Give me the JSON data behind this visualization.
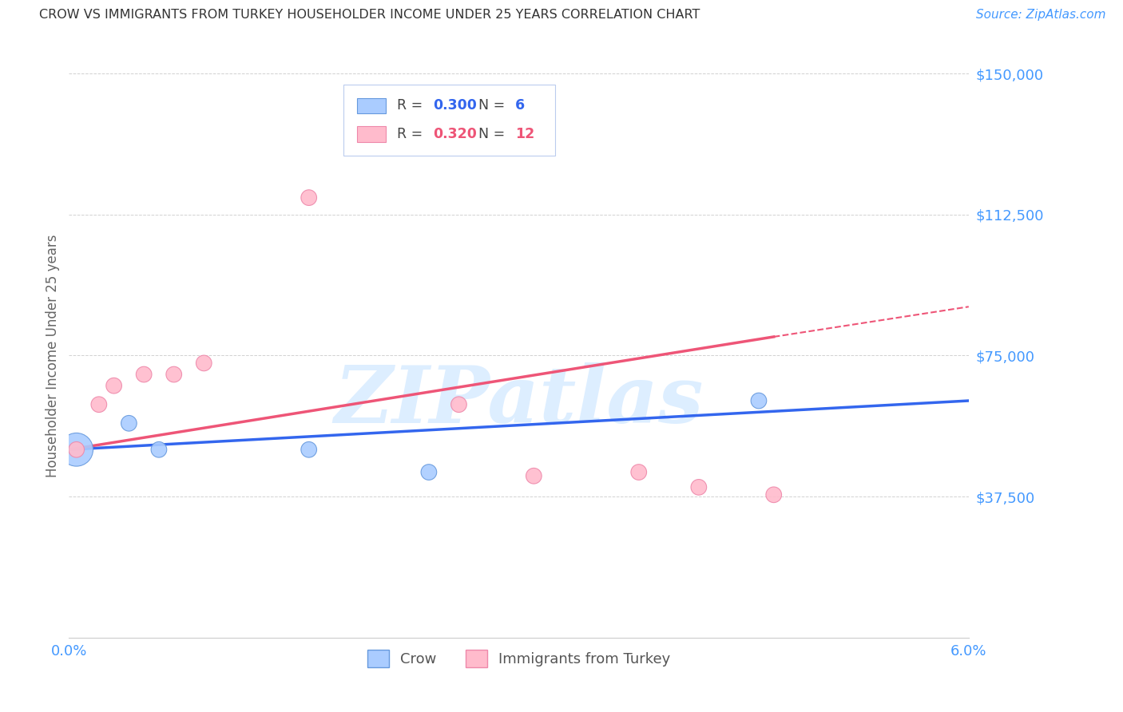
{
  "title": "CROW VS IMMIGRANTS FROM TURKEY HOUSEHOLDER INCOME UNDER 25 YEARS CORRELATION CHART",
  "source": "Source: ZipAtlas.com",
  "ylabel": "Householder Income Under 25 years",
  "xlim": [
    0.0,
    0.06
  ],
  "ylim": [
    0,
    150000
  ],
  "yticks": [
    0,
    37500,
    75000,
    112500,
    150000
  ],
  "ytick_labels": [
    "",
    "$37,500",
    "$75,000",
    "$112,500",
    "$150,000"
  ],
  "xticks": [
    0.0,
    0.01,
    0.02,
    0.03,
    0.04,
    0.05,
    0.06
  ],
  "xtick_labels": [
    "0.0%",
    "",
    "",
    "",
    "",
    "",
    "6.0%"
  ],
  "crow_x": [
    0.0005,
    0.004,
    0.006,
    0.016,
    0.024,
    0.046
  ],
  "crow_y": [
    50000,
    57000,
    50000,
    50000,
    44000,
    63000
  ],
  "crow_s": [
    900,
    200,
    200,
    200,
    200,
    200
  ],
  "turkey_x": [
    0.0005,
    0.002,
    0.003,
    0.005,
    0.007,
    0.009,
    0.016,
    0.026,
    0.031,
    0.038,
    0.042,
    0.047
  ],
  "turkey_y": [
    50000,
    62000,
    67000,
    70000,
    70000,
    73000,
    117000,
    62000,
    43000,
    44000,
    40000,
    38000
  ],
  "turkey_s": [
    200,
    200,
    200,
    200,
    200,
    200,
    200,
    200,
    200,
    200,
    200,
    200
  ],
  "crow_color": "#AACCFF",
  "crow_edge_color": "#6699DD",
  "turkey_color": "#FFBBCC",
  "turkey_edge_color": "#EE88AA",
  "crow_R": 0.3,
  "crow_N": 6,
  "turkey_R": 0.32,
  "turkey_N": 12,
  "crow_line_color": "#3366EE",
  "turkey_line_color": "#EE5577",
  "background_color": "#FFFFFF",
  "grid_color": "#CCCCCC",
  "title_color": "#333333",
  "label_color": "#4499FF",
  "watermark": "ZIPatlas",
  "watermark_color": "#DDEEFF"
}
